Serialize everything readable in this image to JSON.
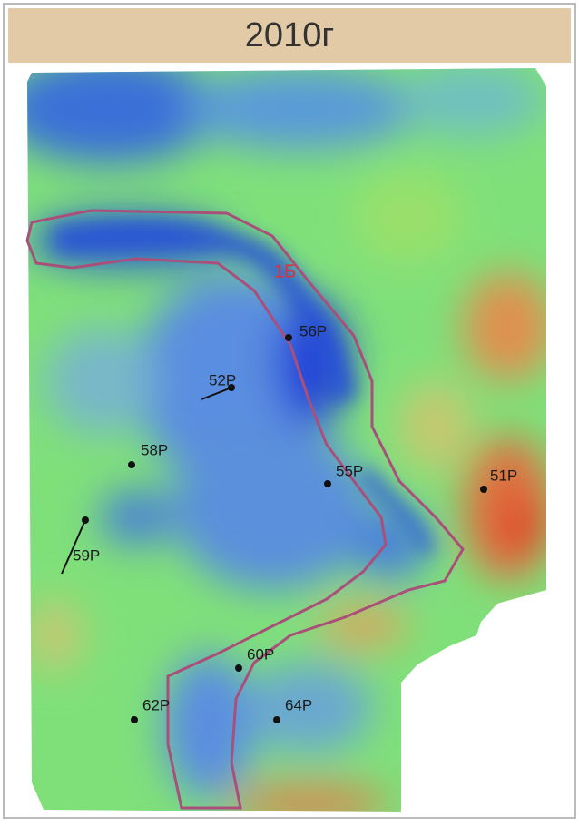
{
  "header": {
    "title": "2010г"
  },
  "zone_label": "1Б",
  "wells": [
    {
      "label": "56P"
    },
    {
      "label": "52P"
    },
    {
      "label": "58P"
    },
    {
      "label": "59P"
    },
    {
      "label": "55P"
    },
    {
      "label": "51P"
    },
    {
      "label": "60P"
    },
    {
      "label": "64P"
    },
    {
      "label": "62P"
    }
  ]
}
